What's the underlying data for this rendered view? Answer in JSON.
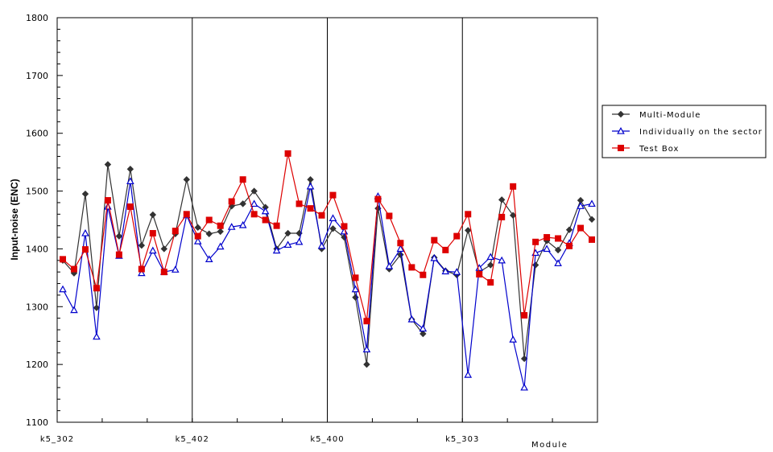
{
  "chart_data": {
    "type": "line",
    "title": "",
    "ylabel": "Input-noise (ENC)",
    "xlabel": "Module",
    "ylim": [
      1100,
      1800
    ],
    "yticks": [
      1100,
      1200,
      1300,
      1400,
      1500,
      1600,
      1700,
      1800
    ],
    "grid": false,
    "legend_position": "right",
    "category_labels": [
      "k5_302",
      "k5_402",
      "k5_400",
      "k5_303"
    ],
    "series": [
      {
        "name": "Multi-Module",
        "color": "#333333",
        "marker": "diamond",
        "values": [
          1380,
          1358,
          1495,
          1298,
          1546,
          1422,
          1538,
          1406,
          1459,
          1400,
          1426,
          1520,
          1437,
          1426,
          1430,
          1474,
          1478,
          1500,
          1472,
          1400,
          1427,
          1427,
          1520,
          1400,
          1435,
          1420,
          1316,
          1200,
          1470,
          1365,
          1390,
          1278,
          1253,
          1385,
          1362,
          1355,
          1432,
          1360,
          1372,
          1485,
          1458,
          1210,
          1372,
          1414,
          1398,
          1433,
          1484,
          1451
        ]
      },
      {
        "name": "Individually on the sector",
        "color": "#0000cc",
        "marker": "triangle",
        "values": [
          1330,
          1294,
          1427,
          1248,
          1473,
          1388,
          1517,
          1358,
          1397,
          1360,
          1364,
          1458,
          1413,
          1382,
          1404,
          1438,
          1441,
          1478,
          1465,
          1397,
          1407,
          1412,
          1508,
          1405,
          1453,
          1430,
          1330,
          1226,
          1491,
          1370,
          1400,
          1278,
          1262,
          1384,
          1361,
          1360,
          1182,
          1367,
          1386,
          1380,
          1243,
          1160,
          1393,
          1400,
          1375,
          1410,
          1474,
          1478
        ]
      },
      {
        "name": "Test Box",
        "color": "#dd0000",
        "marker": "square",
        "values": [
          1382,
          1365,
          1399,
          1332,
          1484,
          1390,
          1473,
          1365,
          1427,
          1360,
          1431,
          1460,
          1422,
          1450,
          1440,
          1482,
          1520,
          1460,
          1450,
          1440,
          1565,
          1478,
          1470,
          1458,
          1493,
          1439,
          1350,
          1275,
          1486,
          1457,
          1410,
          1368,
          1355,
          1415,
          1398,
          1422,
          1460,
          1356,
          1342,
          1455,
          1508,
          1285,
          1412,
          1420,
          1418,
          1405,
          1436,
          1416
        ]
      }
    ]
  }
}
